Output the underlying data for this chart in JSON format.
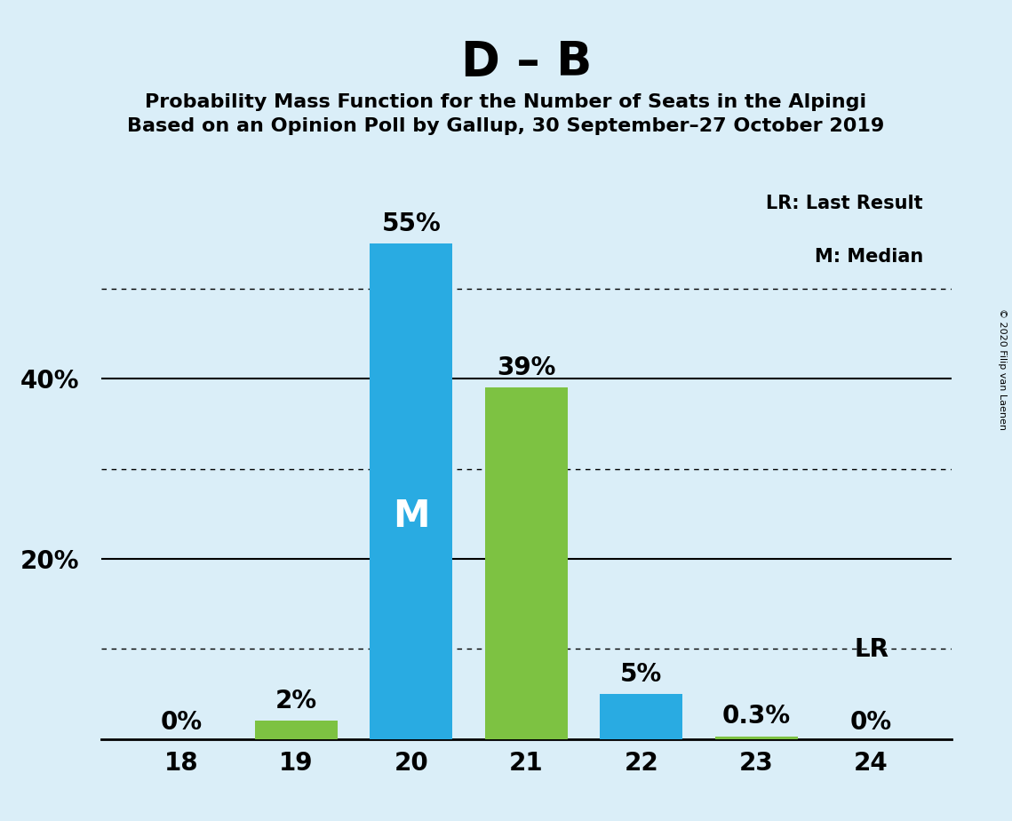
{
  "title": "D – B",
  "subtitle1": "Probability Mass Function for the Number of Seats in the Alpingi",
  "subtitle2": "Based on an Opinion Poll by Gallup, 30 September–27 October 2019",
  "copyright": "© 2020 Filip van Laenen",
  "categories": [
    18,
    19,
    20,
    21,
    22,
    23,
    24
  ],
  "values": [
    0,
    2,
    55,
    39,
    5,
    0.3,
    0
  ],
  "bar_colors": [
    "#7dc242",
    "#7dc242",
    "#29abe2",
    "#7dc242",
    "#29abe2",
    "#7dc242",
    "#7dc242"
  ],
  "bar_labels": [
    "0%",
    "2%",
    "55%",
    "39%",
    "5%",
    "0.3%",
    "0%"
  ],
  "show_label": [
    true,
    true,
    true,
    true,
    true,
    true,
    true
  ],
  "median_bar_idx": 2,
  "lr_bar_idx": 6,
  "background_color": "#daeef8",
  "yticks": [
    20,
    40
  ],
  "ymax": 62,
  "dotted_lines": [
    10,
    30,
    50
  ],
  "solid_lines": [
    20,
    40
  ],
  "legend_text1": "LR: Last Result",
  "legend_text2": "M: Median",
  "title_fontsize": 38,
  "subtitle_fontsize": 16,
  "label_fontsize": 20,
  "tick_fontsize": 20,
  "ylabel_fontsize": 20,
  "median_label": "M",
  "lr_label": "LR"
}
